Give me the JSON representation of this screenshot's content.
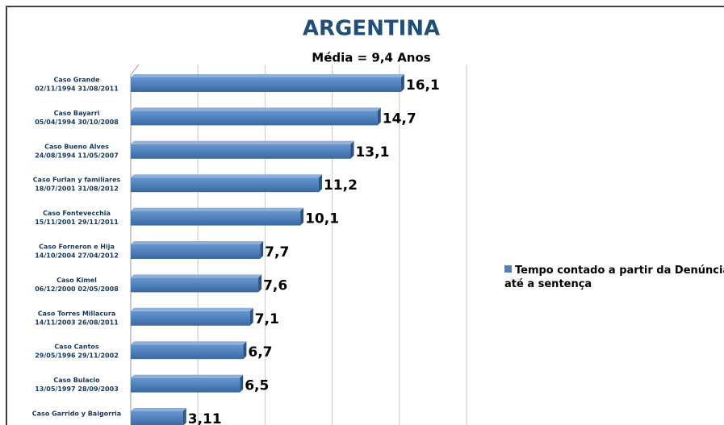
{
  "chart_data": {
    "type": "bar",
    "orientation": "horizontal",
    "title": "ARGENTINA",
    "subtitle": "Média = 9,4 Anos",
    "categories": [
      "Caso Grande",
      "Caso Bayarri",
      "Caso Bueno Alves",
      "Caso Furlan y familiares",
      "Caso Fontevecchia",
      "Caso Forneron e Hija",
      "Caso Kimel",
      "Caso Torres Millacura",
      "Caso Cantos",
      "Caso Bulacio",
      "Caso Garrido  y Baigorria"
    ],
    "category_periods": [
      "02/11/1994  31/08/2011",
      "05/04/1994  30/10/2008",
      "24/08/1994  11/05/2007",
      "18/07/2001  31/08/2012",
      "15/11/2001  29/11/2011",
      "14/10/2004  27/04/2012",
      "06/12/2000  02/05/2008",
      "14/11/2003  26/08/2011",
      "29/05/1996  29/11/2002",
      "13/05/1997  28/09/2003",
      null
    ],
    "series": [
      {
        "name": "Tempo contado a partir da Denúncia até a sentença",
        "color": "#4f81bd",
        "values": [
          16.1,
          14.7,
          13.1,
          11.2,
          10.1,
          7.7,
          7.6,
          7.1,
          6.7,
          6.5,
          3.11
        ],
        "value_labels": [
          "16,1",
          "14,7",
          "13,1",
          "11,2",
          "10,1",
          "7,7",
          "7,6",
          "7,1",
          "6,7",
          "6,5",
          "3,11"
        ]
      }
    ],
    "xlim": [
      0,
      20
    ],
    "gridlines": [
      0,
      4,
      8,
      12,
      16,
      20
    ],
    "grid": true,
    "legend": "right"
  }
}
